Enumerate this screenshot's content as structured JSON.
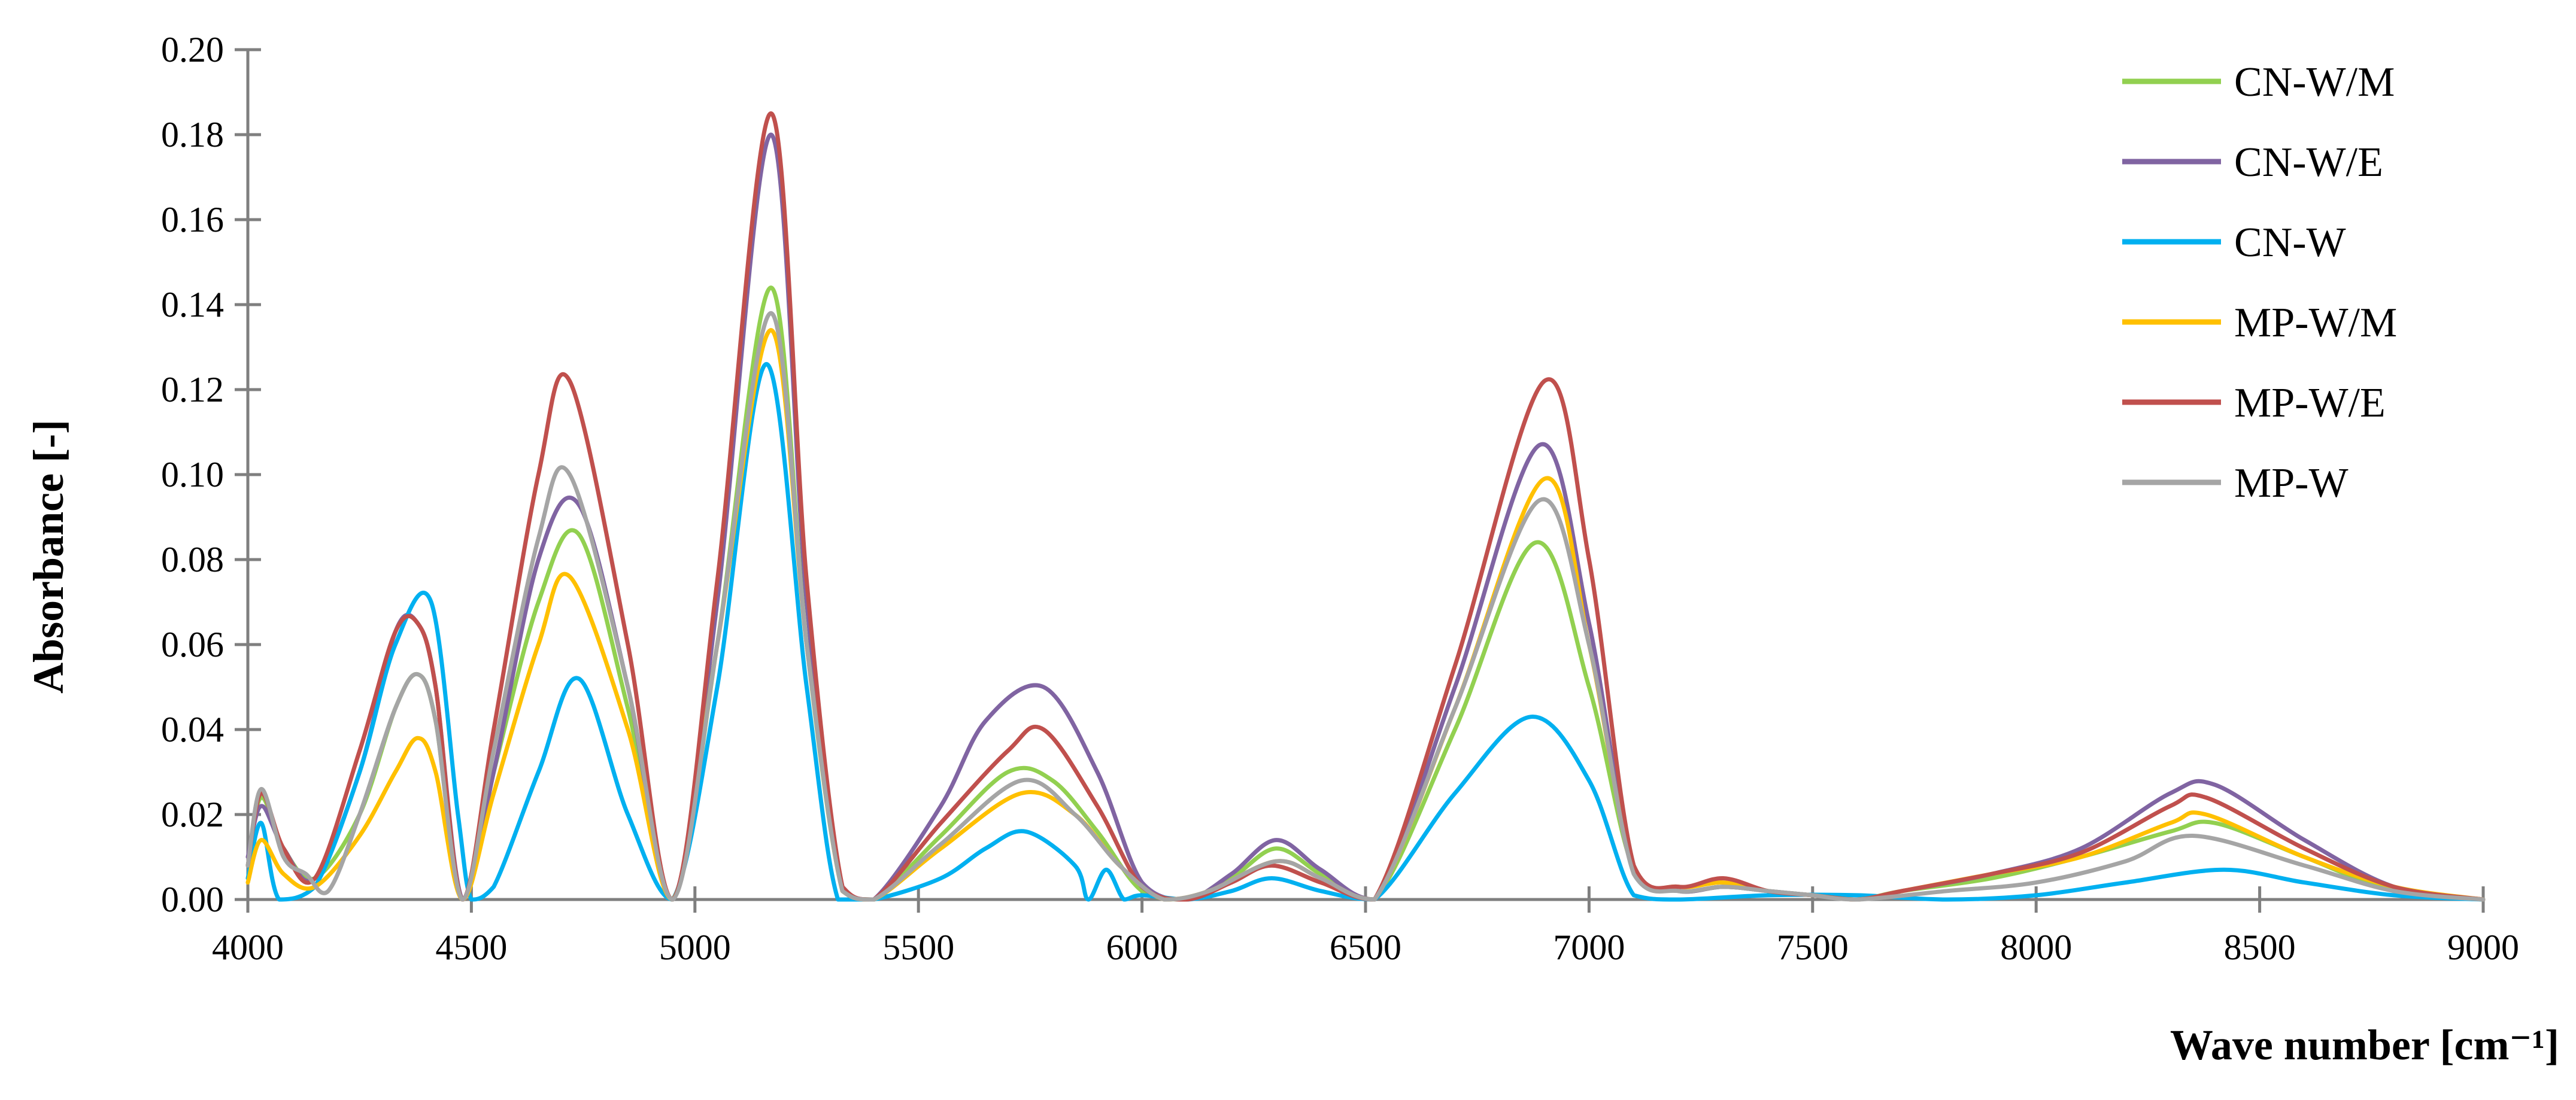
{
  "chart_data": {
    "type": "line",
    "title": "",
    "xlabel": "Wave number [cm⁻¹]",
    "ylabel": "Absorbance [-]",
    "xlim": [
      4000,
      9000
    ],
    "ylim": [
      0,
      0.2
    ],
    "grid": false,
    "legend_position": "top-right",
    "x_ticks": [
      4000,
      4500,
      5000,
      5500,
      6000,
      6500,
      7000,
      7500,
      8000,
      8500,
      9000
    ],
    "y_ticks": [
      0.0,
      0.02,
      0.04,
      0.06,
      0.08,
      0.1,
      0.12,
      0.14,
      0.16,
      0.18,
      0.2
    ],
    "x_tick_labels": [
      "4000",
      "4500",
      "5000",
      "5500",
      "6000",
      "6500",
      "7000",
      "7500",
      "8000",
      "8500",
      "9000"
    ],
    "y_tick_labels": [
      "0.00",
      "0.02",
      "0.04",
      "0.06",
      "0.08",
      "0.10",
      "0.12",
      "0.14",
      "0.16",
      "0.18",
      "0.20"
    ],
    "series": [
      {
        "name": "CN-W/M",
        "color": "#92D050",
        "x": [
          4000,
          4030,
          4080,
          4150,
          4250,
          4330,
          4380,
          4420,
          4480,
          4550,
          4650,
          4740,
          4850,
          4950,
          5050,
          5170,
          5250,
          5330,
          5400,
          5550,
          5700,
          5800,
          5900,
          6000,
          6100,
          6200,
          6300,
          6400,
          6520,
          6700,
          6880,
          7000,
          7100,
          7200,
          7300,
          7400,
          7500,
          7600,
          7700,
          7900,
          8100,
          8300,
          8400,
          8600,
          8800,
          9000
        ],
        "y": [
          0.008,
          0.024,
          0.012,
          0.005,
          0.02,
          0.045,
          0.053,
          0.042,
          0.0,
          0.03,
          0.07,
          0.086,
          0.045,
          0.0,
          0.06,
          0.144,
          0.06,
          0.002,
          0.0,
          0.015,
          0.03,
          0.028,
          0.016,
          0.002,
          0.0,
          0.005,
          0.012,
          0.006,
          0.0,
          0.04,
          0.084,
          0.05,
          0.007,
          0.002,
          0.003,
          0.002,
          0.001,
          0.0,
          0.002,
          0.005,
          0.01,
          0.016,
          0.018,
          0.01,
          0.002,
          0.0
        ]
      },
      {
        "name": "CN-W/E",
        "color": "#8064A2",
        "x": [
          4000,
          4030,
          4080,
          4150,
          4250,
          4330,
          4380,
          4420,
          4480,
          4550,
          4650,
          4740,
          4850,
          4950,
          5050,
          5170,
          5250,
          5330,
          5400,
          5550,
          5650,
          5780,
          5900,
          6000,
          6100,
          6200,
          6300,
          6400,
          6520,
          6700,
          6890,
          7000,
          7100,
          7200,
          7300,
          7400,
          7500,
          7600,
          7700,
          7900,
          8100,
          8300,
          8400,
          8600,
          8800,
          9000
        ],
        "y": [
          0.01,
          0.022,
          0.012,
          0.005,
          0.03,
          0.063,
          0.065,
          0.05,
          0.0,
          0.03,
          0.08,
          0.093,
          0.05,
          0.0,
          0.07,
          0.18,
          0.07,
          0.003,
          0.0,
          0.022,
          0.042,
          0.05,
          0.03,
          0.004,
          0.0,
          0.006,
          0.014,
          0.007,
          0.0,
          0.05,
          0.107,
          0.065,
          0.007,
          0.002,
          0.003,
          0.002,
          0.001,
          0.0,
          0.002,
          0.006,
          0.012,
          0.025,
          0.027,
          0.014,
          0.003,
          0.0
        ]
      },
      {
        "name": "CN-W",
        "color": "#00B0F0",
        "x": [
          4000,
          4030,
          4070,
          4150,
          4250,
          4330,
          4410,
          4470,
          4500,
          4550,
          4650,
          4740,
          4850,
          4950,
          5050,
          5160,
          5250,
          5320,
          5400,
          5550,
          5650,
          5740,
          5850,
          5880,
          5920,
          5960,
          6000,
          6100,
          6200,
          6290,
          6400,
          6520,
          6700,
          6870,
          7000,
          7100,
          7200,
          7400,
          7600,
          7800,
          8000,
          8200,
          8420,
          8600,
          8800,
          9000
        ],
        "y": [
          0.005,
          0.018,
          0.0,
          0.003,
          0.03,
          0.06,
          0.07,
          0.02,
          0.0,
          0.003,
          0.03,
          0.052,
          0.02,
          0.0,
          0.05,
          0.126,
          0.05,
          0.0,
          0.0,
          0.005,
          0.012,
          0.016,
          0.008,
          0.0,
          0.007,
          0.0,
          0.001,
          0.0,
          0.002,
          0.005,
          0.002,
          0.0,
          0.025,
          0.043,
          0.028,
          0.001,
          0.0,
          0.001,
          0.001,
          0.0,
          0.001,
          0.004,
          0.007,
          0.004,
          0.001,
          0.0
        ]
      },
      {
        "name": "MP-W/M",
        "color": "#FFC000",
        "x": [
          4000,
          4030,
          4080,
          4150,
          4250,
          4330,
          4380,
          4420,
          4480,
          4550,
          4650,
          4720,
          4850,
          4950,
          5050,
          5170,
          5250,
          5330,
          5400,
          5550,
          5730,
          5850,
          5950,
          6050,
          6150,
          6300,
          6400,
          6520,
          6700,
          6900,
          7000,
          7100,
          7200,
          7300,
          7400,
          7500,
          7600,
          7700,
          7900,
          8100,
          8300,
          8380,
          8600,
          8800,
          9000
        ],
        "y": [
          0.004,
          0.014,
          0.006,
          0.003,
          0.015,
          0.03,
          0.038,
          0.03,
          0.0,
          0.025,
          0.06,
          0.076,
          0.04,
          0.0,
          0.06,
          0.134,
          0.06,
          0.002,
          0.0,
          0.012,
          0.025,
          0.02,
          0.008,
          0.0,
          0.002,
          0.009,
          0.005,
          0.0,
          0.045,
          0.099,
          0.06,
          0.007,
          0.003,
          0.004,
          0.002,
          0.001,
          0.0,
          0.002,
          0.006,
          0.01,
          0.018,
          0.02,
          0.01,
          0.003,
          0.0
        ]
      },
      {
        "name": "MP-W/E",
        "color": "#C0504D",
        "x": [
          4000,
          4030,
          4080,
          4150,
          4250,
          4330,
          4380,
          4420,
          4480,
          4550,
          4650,
          4720,
          4850,
          4950,
          5050,
          5170,
          5250,
          5330,
          5400,
          5550,
          5700,
          5780,
          5900,
          6000,
          6100,
          6200,
          6290,
          6400,
          6520,
          6700,
          6900,
          7000,
          7100,
          7200,
          7300,
          7400,
          7500,
          7600,
          7700,
          7900,
          8100,
          8300,
          8380,
          8600,
          8800,
          9000
        ],
        "y": [
          0.008,
          0.025,
          0.012,
          0.005,
          0.035,
          0.063,
          0.065,
          0.05,
          0.0,
          0.04,
          0.1,
          0.122,
          0.06,
          0.0,
          0.075,
          0.185,
          0.075,
          0.003,
          0.0,
          0.018,
          0.035,
          0.04,
          0.022,
          0.003,
          0.0,
          0.004,
          0.008,
          0.004,
          0.0,
          0.055,
          0.122,
          0.08,
          0.008,
          0.003,
          0.005,
          0.002,
          0.001,
          0.0,
          0.002,
          0.006,
          0.011,
          0.022,
          0.024,
          0.012,
          0.003,
          0.0
        ]
      },
      {
        "name": "MP-W",
        "color": "#A5A5A5",
        "x": [
          4000,
          4030,
          4080,
          4130,
          4180,
          4250,
          4330,
          4380,
          4420,
          4480,
          4550,
          4650,
          4720,
          4850,
          4950,
          5050,
          5170,
          5250,
          5330,
          5400,
          5550,
          5730,
          5850,
          5950,
          6050,
          6150,
          6300,
          6400,
          6520,
          6700,
          6890,
          7000,
          7100,
          7200,
          7300,
          7400,
          7500,
          7600,
          7800,
          8000,
          8200,
          8350,
          8600,
          8800,
          9000
        ],
        "y": [
          0.008,
          0.026,
          0.01,
          0.006,
          0.002,
          0.02,
          0.045,
          0.053,
          0.042,
          0.0,
          0.035,
          0.085,
          0.1,
          0.05,
          0.0,
          0.06,
          0.138,
          0.06,
          0.002,
          0.0,
          0.013,
          0.028,
          0.02,
          0.008,
          0.0,
          0.002,
          0.009,
          0.005,
          0.0,
          0.045,
          0.094,
          0.06,
          0.006,
          0.002,
          0.003,
          0.002,
          0.001,
          0.0,
          0.002,
          0.004,
          0.009,
          0.015,
          0.008,
          0.002,
          0.0
        ]
      }
    ]
  }
}
